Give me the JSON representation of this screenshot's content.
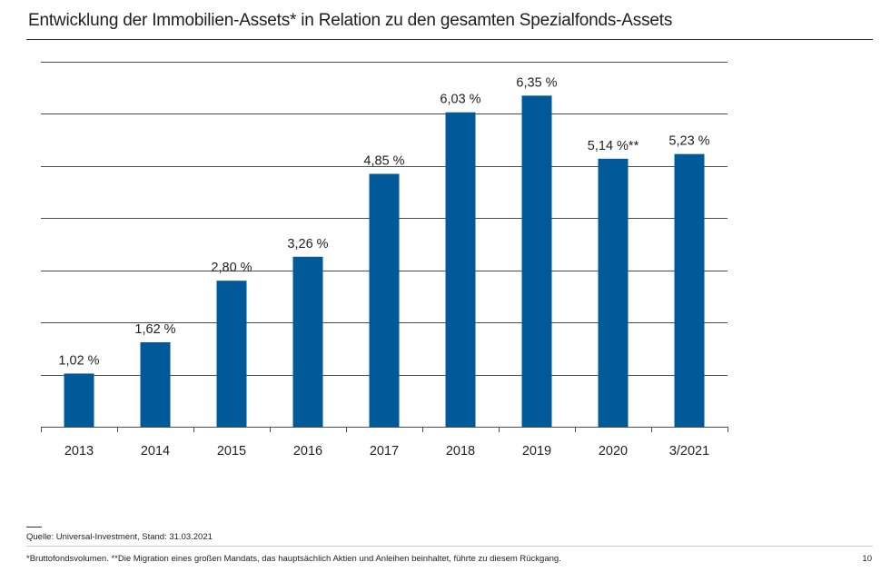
{
  "header": {
    "title": "Entwicklung der Immobilien-Assets* in Relation zu den gesamten Spezialfonds-Assets"
  },
  "footer": {
    "source": "Quelle: Universal-Investment, Stand: 31.03.2021",
    "footnote": "*Bruttofondsvolumen. **Die Migration eines großen Mandats, das hauptsächlich Aktien und Anleihen beinhaltet, führte zu diesem Rückgang.",
    "page_number": "10"
  },
  "colors": {
    "bar": "#005A9A",
    "grid": "#4d4d4d"
  },
  "chart_data": {
    "type": "bar",
    "categories": [
      "2013",
      "2014",
      "2015",
      "2016",
      "2017",
      "2018",
      "2019",
      "2020",
      "3/2021"
    ],
    "values": [
      1.02,
      1.62,
      2.8,
      3.26,
      4.85,
      6.03,
      6.35,
      5.14,
      5.23
    ],
    "data_labels": [
      "1,02 %",
      "1,62 %",
      "2,80 %",
      "3,26 %",
      "4,85 %",
      "6,03 %",
      "6,35 %",
      "5,14 %**",
      "5,23 %"
    ],
    "ylim": [
      0,
      7
    ],
    "grid": true,
    "legend": "none"
  }
}
